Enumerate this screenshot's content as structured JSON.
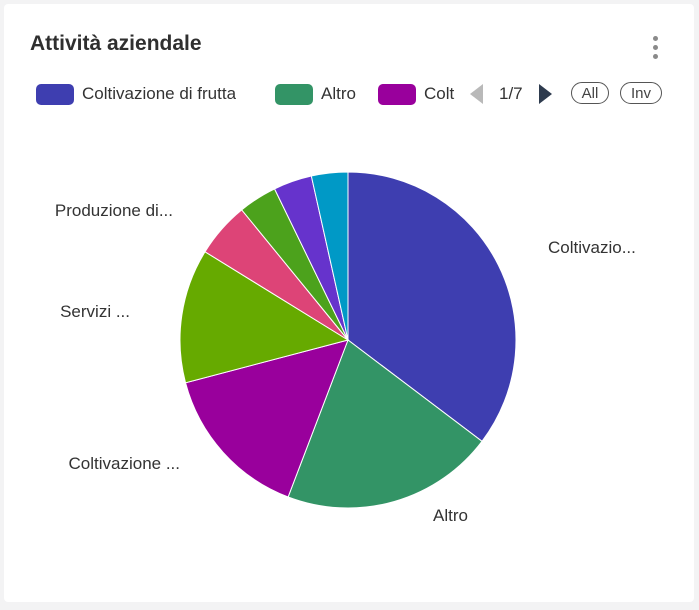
{
  "card": {
    "title": "Attività aziendale",
    "menu_icon": "vertical-dots-icon"
  },
  "legend": {
    "items": [
      {
        "label": "Coltivazione di frutta",
        "color": "#3e3eb0"
      },
      {
        "label": "Altro",
        "color": "#339466"
      },
      {
        "label": "Colt",
        "color": "#99009c"
      }
    ],
    "page_text": "1/7",
    "prev_icon": "triangle-left-icon",
    "next_icon": "triangle-right-icon",
    "all_label": "All",
    "inv_label": "Inv"
  },
  "chart_data": {
    "type": "pie",
    "slices": [
      {
        "label": "Coltivazio...",
        "value": 35.3,
        "color": "#3e3eb0"
      },
      {
        "label": "Altro",
        "value": 20.5,
        "color": "#339466"
      },
      {
        "label": "Coltivazione ...",
        "value": 15.1,
        "color": "#99009c"
      },
      {
        "label": "Servizi ...",
        "value": 12.9,
        "color": "#66aa00"
      },
      {
        "label": "Produzione di...",
        "value": 5.3,
        "color": "#dd4477"
      },
      {
        "label": "",
        "value": 3.7,
        "color": "#4ca21c"
      },
      {
        "label": "",
        "value": 3.7,
        "color": "#6633cc"
      },
      {
        "label": "",
        "value": 3.5,
        "color": "#0099c6"
      }
    ]
  }
}
